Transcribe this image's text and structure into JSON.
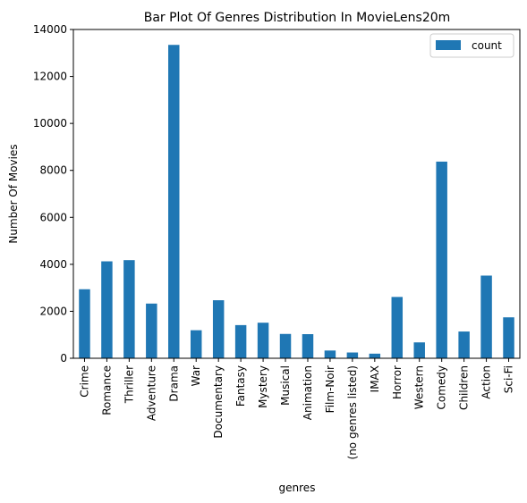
{
  "chart_data": {
    "type": "bar",
    "title": "Bar Plot Of Genres Distribution In MovieLens20m",
    "xlabel": "genres",
    "ylabel": "Number Of Movies",
    "ylim": [
      0,
      14000
    ],
    "yticks": [
      0,
      2000,
      4000,
      6000,
      8000,
      10000,
      12000,
      14000
    ],
    "grid": false,
    "legend_position": "top-right",
    "categories": [
      "Crime",
      "Romance",
      "Thriller",
      "Adventure",
      "Drama",
      "War",
      "Documentary",
      "Fantasy",
      "Mystery",
      "Musical",
      "Animation",
      "Film-Noir",
      "(no genres listed)",
      "IMAX",
      "Horror",
      "Western",
      "Comedy",
      "Children",
      "Action",
      "Sci-Fi"
    ],
    "series": [
      {
        "name": "count",
        "color": "#1f77b4",
        "values": [
          2939,
          4127,
          4178,
          2329,
          13344,
          1194,
          2471,
          1412,
          1514,
          1036,
          1027,
          330,
          246,
          196,
          2611,
          676,
          8374,
          1139,
          3520,
          1743
        ]
      }
    ]
  }
}
